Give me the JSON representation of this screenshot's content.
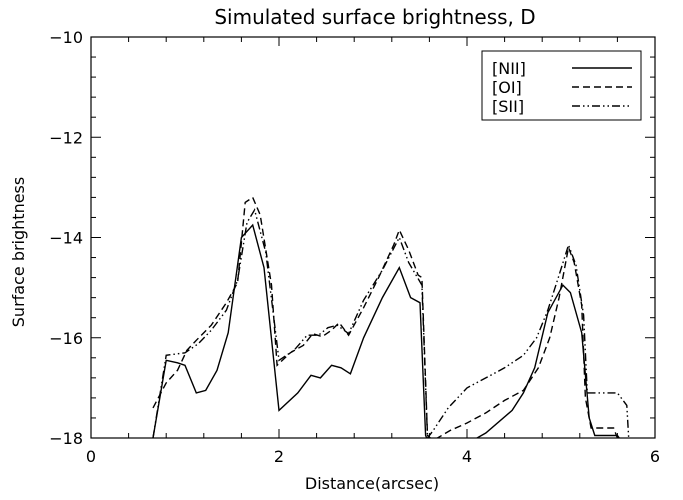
{
  "chart_data": {
    "type": "line",
    "title": "Simulated surface brightness, D",
    "xlabel": "Distance(arcsec)",
    "ylabel": "Surface brightness",
    "xlim": [
      0,
      6
    ],
    "ylim": [
      -18,
      -10
    ],
    "x_ticks": [
      0,
      2,
      4,
      6
    ],
    "x_tick_labels": [
      "0",
      "2",
      "4",
      "6"
    ],
    "y_ticks": [
      -18,
      -16,
      -14,
      -12,
      -10
    ],
    "y_tick_labels": [
      "−18",
      "−16",
      "−14",
      "−12",
      "−10"
    ],
    "grid": false,
    "legend_position": "top-right",
    "series": [
      {
        "name": "[NII]",
        "line_style": "solid",
        "color": "#000000",
        "points": [
          [
            0.66,
            -18.0
          ],
          [
            0.8,
            -16.45
          ],
          [
            0.92,
            -16.5
          ],
          [
            1.0,
            -16.55
          ],
          [
            1.12,
            -17.1
          ],
          [
            1.22,
            -17.05
          ],
          [
            1.34,
            -16.65
          ],
          [
            1.46,
            -15.9
          ],
          [
            1.6,
            -14.0
          ],
          [
            1.72,
            -13.75
          ],
          [
            1.84,
            -14.6
          ],
          [
            2.0,
            -17.45
          ],
          [
            2.2,
            -17.1
          ],
          [
            2.34,
            -16.75
          ],
          [
            2.44,
            -16.8
          ],
          [
            2.56,
            -16.55
          ],
          [
            2.66,
            -16.6
          ],
          [
            2.76,
            -16.72
          ],
          [
            2.9,
            -16.0
          ],
          [
            3.1,
            -15.2
          ],
          [
            3.28,
            -14.6
          ],
          [
            3.4,
            -15.2
          ],
          [
            3.5,
            -15.3
          ],
          [
            3.56,
            -17.95
          ],
          [
            3.62,
            -18.2
          ],
          [
            4.06,
            -18.05
          ],
          [
            4.2,
            -17.9
          ],
          [
            4.48,
            -17.45
          ],
          [
            4.6,
            -17.1
          ],
          [
            4.72,
            -16.6
          ],
          [
            4.86,
            -15.5
          ],
          [
            5.02,
            -14.95
          ],
          [
            5.1,
            -15.1
          ],
          [
            5.22,
            -15.9
          ],
          [
            5.3,
            -17.6
          ],
          [
            5.36,
            -17.95
          ],
          [
            5.6,
            -17.95
          ],
          [
            5.62,
            -18.0
          ]
        ]
      },
      {
        "name": "[OI]",
        "line_style": "dashed",
        "color": "#000000",
        "points": [
          [
            0.66,
            -17.4
          ],
          [
            0.8,
            -16.9
          ],
          [
            0.92,
            -16.65
          ],
          [
            1.02,
            -16.25
          ],
          [
            1.12,
            -16.05
          ],
          [
            1.28,
            -15.75
          ],
          [
            1.44,
            -15.3
          ],
          [
            1.56,
            -14.9
          ],
          [
            1.64,
            -13.3
          ],
          [
            1.72,
            -13.2
          ],
          [
            1.8,
            -13.55
          ],
          [
            1.92,
            -14.95
          ],
          [
            1.98,
            -16.55
          ],
          [
            2.12,
            -16.3
          ],
          [
            2.26,
            -16.15
          ],
          [
            2.36,
            -15.92
          ],
          [
            2.46,
            -15.98
          ],
          [
            2.56,
            -15.85
          ],
          [
            2.64,
            -15.7
          ],
          [
            2.74,
            -15.95
          ],
          [
            2.9,
            -15.4
          ],
          [
            3.06,
            -14.8
          ],
          [
            3.22,
            -14.15
          ],
          [
            3.28,
            -13.85
          ],
          [
            3.38,
            -14.25
          ],
          [
            3.48,
            -14.75
          ],
          [
            3.52,
            -14.8
          ],
          [
            3.58,
            -17.95
          ],
          [
            3.64,
            -18.05
          ],
          [
            3.82,
            -17.85
          ],
          [
            4.0,
            -17.7
          ],
          [
            4.2,
            -17.5
          ],
          [
            4.4,
            -17.25
          ],
          [
            4.6,
            -17.05
          ],
          [
            4.76,
            -16.6
          ],
          [
            4.88,
            -16.0
          ],
          [
            4.98,
            -15.2
          ],
          [
            5.08,
            -14.2
          ],
          [
            5.14,
            -14.5
          ],
          [
            5.22,
            -15.35
          ],
          [
            5.26,
            -17.2
          ],
          [
            5.32,
            -17.8
          ],
          [
            5.56,
            -17.8
          ],
          [
            5.6,
            -18.0
          ]
        ]
      },
      {
        "name": "[SII]",
        "line_style": "dash-dot-dot",
        "color": "#000000",
        "points": [
          [
            0.66,
            -18.0
          ],
          [
            0.8,
            -16.35
          ],
          [
            1.0,
            -16.3
          ],
          [
            1.14,
            -16.12
          ],
          [
            1.28,
            -15.85
          ],
          [
            1.44,
            -15.45
          ],
          [
            1.56,
            -14.85
          ],
          [
            1.66,
            -13.7
          ],
          [
            1.74,
            -13.45
          ],
          [
            1.86,
            -14.3
          ],
          [
            2.0,
            -16.45
          ],
          [
            2.16,
            -16.25
          ],
          [
            2.3,
            -15.95
          ],
          [
            2.42,
            -15.95
          ],
          [
            2.52,
            -15.8
          ],
          [
            2.62,
            -15.75
          ],
          [
            2.74,
            -15.92
          ],
          [
            2.9,
            -15.25
          ],
          [
            3.1,
            -14.65
          ],
          [
            3.28,
            -14.0
          ],
          [
            3.38,
            -14.5
          ],
          [
            3.52,
            -14.95
          ],
          [
            3.58,
            -18.0
          ],
          [
            3.64,
            -17.85
          ],
          [
            3.8,
            -17.4
          ],
          [
            4.0,
            -17.0
          ],
          [
            4.2,
            -16.8
          ],
          [
            4.4,
            -16.6
          ],
          [
            4.6,
            -16.35
          ],
          [
            4.74,
            -16.0
          ],
          [
            4.86,
            -15.45
          ],
          [
            4.98,
            -14.75
          ],
          [
            5.08,
            -14.15
          ],
          [
            5.16,
            -14.55
          ],
          [
            5.24,
            -15.55
          ],
          [
            5.28,
            -17.1
          ],
          [
            5.5,
            -17.1
          ],
          [
            5.6,
            -17.1
          ],
          [
            5.7,
            -17.35
          ],
          [
            5.72,
            -18.0
          ]
        ]
      }
    ]
  }
}
